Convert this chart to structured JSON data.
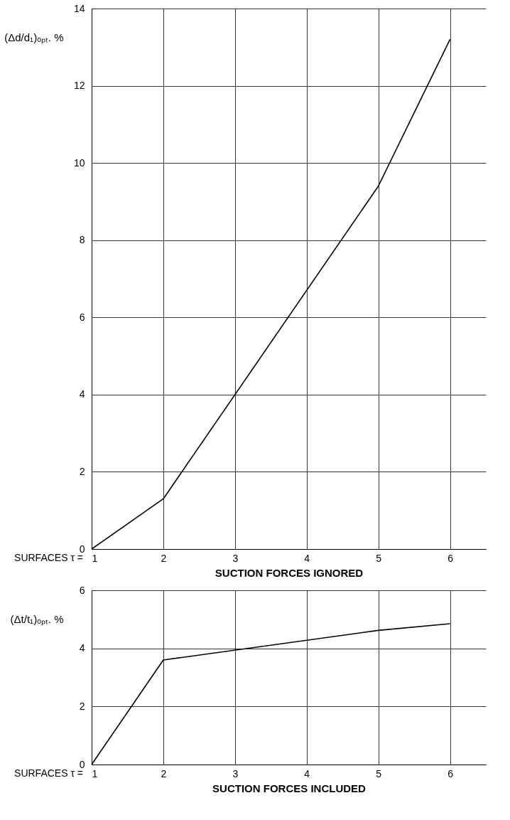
{
  "chart_data": [
    {
      "type": "line",
      "x": [
        1,
        2,
        5,
        6
      ],
      "values": [
        0,
        1.3,
        9.4,
        13.2
      ],
      "color": "#000000",
      "xlabel": "SUCTION FORCES IGNORED",
      "ylabel": "(Δd/d₁)ₒₚₜ. %",
      "xlim": [
        1,
        6.5
      ],
      "xticks": [
        1,
        2,
        3,
        4,
        5,
        6
      ],
      "ylim": [
        0,
        14
      ],
      "yticks": [
        0,
        2,
        4,
        6,
        8,
        10,
        12,
        14
      ],
      "grid": true,
      "annotations": [
        "SURFACES τ ="
      ]
    },
    {
      "type": "line",
      "x": [
        1,
        2,
        5,
        6
      ],
      "values": [
        0,
        3.6,
        4.62,
        4.85
      ],
      "color": "#000000",
      "xlabel": "SUCTION FORCES INCLUDED",
      "ylabel": "(Δt/t₁)ₒₚₜ. %",
      "xlim": [
        1,
        6.5
      ],
      "xticks": [
        1,
        2,
        3,
        4,
        5,
        6
      ],
      "ylim": [
        0,
        6
      ],
      "yticks": [
        0,
        2,
        4,
        6
      ],
      "grid": true,
      "annotations": [
        "SURFACES τ ="
      ]
    }
  ]
}
